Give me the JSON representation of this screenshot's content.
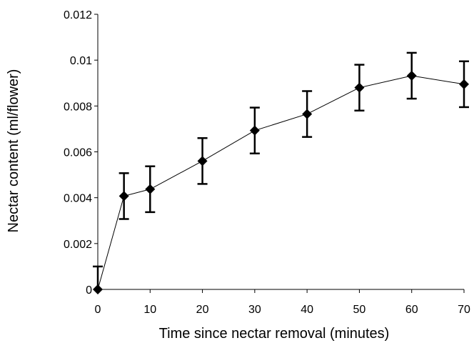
{
  "chart_data": {
    "type": "line",
    "title": "",
    "xlabel": "Time since nectar removal (minutes)",
    "ylabel": "Nectar content (ml/flower)",
    "xlim": [
      0,
      70
    ],
    "ylim": [
      0,
      0.012
    ],
    "xticks": [
      0,
      10,
      20,
      30,
      40,
      50,
      60,
      70
    ],
    "yticks": [
      0,
      0.002,
      0.004,
      0.006,
      0.008,
      0.01,
      0.012
    ],
    "ytick_labels": [
      "0",
      "0.002",
      "0.004",
      "0.006",
      "0.008",
      "0.01",
      "0.012"
    ],
    "grid": false,
    "legend": "none",
    "marker": "diamond",
    "colors": {
      "line": "#000000",
      "marker": "#000000",
      "axis": "#000000",
      "background": "#ffffff"
    },
    "series": [
      {
        "x": [
          0,
          5,
          10,
          20,
          30,
          40,
          50,
          60,
          70
        ],
        "y": [
          0,
          0.00407,
          0.00437,
          0.0056,
          0.00693,
          0.00765,
          0.0088,
          0.00932,
          0.00895
        ],
        "error": [
          0.001,
          0.001,
          0.001,
          0.001,
          0.001,
          0.001,
          0.001,
          0.001,
          0.001
        ]
      }
    ]
  }
}
